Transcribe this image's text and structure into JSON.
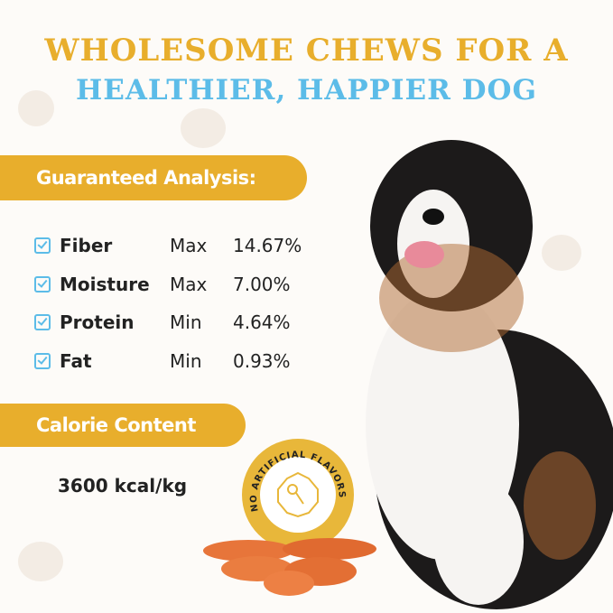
{
  "headline": {
    "line1": "WHOLESOME CHEWS FOR A",
    "line2": "HEALTHIER, HAPPIER DOG"
  },
  "analysis": {
    "title": "Guaranteed Analysis:",
    "rows": [
      {
        "label": "Fiber",
        "qualifier": "Max",
        "value": "14.67%"
      },
      {
        "label": "Moisture",
        "qualifier": "Max",
        "value": "7.00%"
      },
      {
        "label": "Protein",
        "qualifier": "Min",
        "value": "4.64%"
      },
      {
        "label": "Fat",
        "qualifier": "Min",
        "value": "0.93%"
      }
    ]
  },
  "calorie": {
    "title": "Calorie Content",
    "value": "3600 kcal/kg"
  },
  "badge": {
    "text": "NO ARTIFICIAL FLAVORS",
    "icon": "flavor-molecule-icon"
  },
  "colors": {
    "gold": "#e8ae2c",
    "blue": "#5cbce8"
  }
}
